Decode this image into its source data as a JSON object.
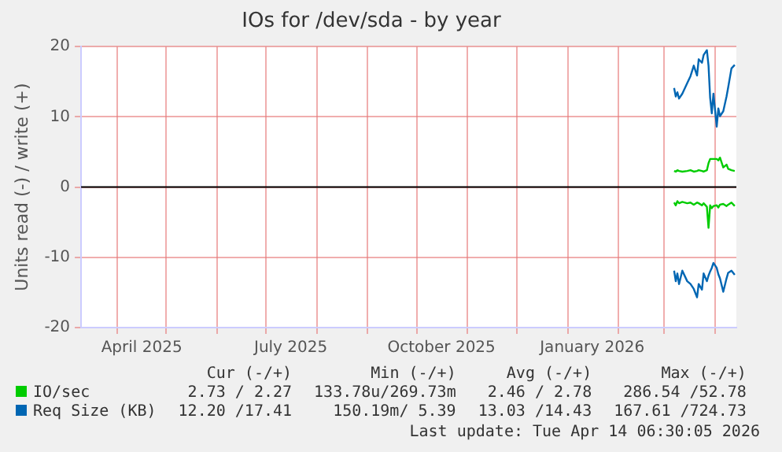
{
  "chart_data": {
    "type": "line",
    "title": "IOs for /dev/sda - by year",
    "ylabel": "Units read (-) / write (+)",
    "xlim": [
      "2025-03-10",
      "2026-04-14"
    ],
    "xticks": [
      {
        "value": "2025-04-01",
        "label": null
      },
      {
        "value": "2025-04-16",
        "label": "April 2025"
      },
      {
        "value": "2025-05-01",
        "label": null
      },
      {
        "value": "2025-06-01",
        "label": null
      },
      {
        "value": "2025-07-01",
        "label": null
      },
      {
        "value": "2025-07-16",
        "label": "July 2025"
      },
      {
        "value": "2025-08-01",
        "label": null
      },
      {
        "value": "2025-09-01",
        "label": null
      },
      {
        "value": "2025-10-01",
        "label": null
      },
      {
        "value": "2025-10-16",
        "label": "October 2025"
      },
      {
        "value": "2025-11-01",
        "label": null
      },
      {
        "value": "2025-12-01",
        "label": null
      },
      {
        "value": "2026-01-01",
        "label": null
      },
      {
        "value": "2026-01-16",
        "label": "January 2026"
      },
      {
        "value": "2026-02-01",
        "label": null
      },
      {
        "value": "2026-03-01",
        "label": null
      },
      {
        "value": "2026-04-01",
        "label": null
      }
    ],
    "ylim": [
      -20,
      20
    ],
    "yticks": [
      -20,
      -10,
      0,
      10,
      20
    ],
    "grid": true,
    "legend": "bottom",
    "marker": "none",
    "line_style": "solid",
    "x": [
      "2026-03-07",
      "2026-03-08",
      "2026-03-09",
      "2026-03-10",
      "2026-03-12",
      "2026-03-15",
      "2026-03-17",
      "2026-03-19",
      "2026-03-21",
      "2026-03-22",
      "2026-03-24",
      "2026-03-25",
      "2026-03-27",
      "2026-03-28",
      "2026-03-29",
      "2026-03-30",
      "2026-03-31",
      "2026-04-02",
      "2026-04-03",
      "2026-04-04",
      "2026-04-06",
      "2026-04-08",
      "2026-04-09",
      "2026-04-11",
      "2026-04-13"
    ],
    "series": [
      {
        "name": "IO/sec",
        "color": "#00cc00",
        "values": [
          2.3,
          2.2,
          2.4,
          2.3,
          2.2,
          2.3,
          2.4,
          2.2,
          2.3,
          2.4,
          2.3,
          2.2,
          2.4,
          3.4,
          4.0,
          4.0,
          4.0,
          4.0,
          3.8,
          4.2,
          2.8,
          3.2,
          2.6,
          2.4,
          2.3
        ]
      },
      {
        "color": "#00cc00",
        "values": [
          -2.2,
          -2.6,
          -2.0,
          -2.3,
          -2.1,
          -2.3,
          -2.2,
          -2.5,
          -2.2,
          -2.3,
          -2.6,
          -2.3,
          -2.8,
          -5.8,
          -2.6,
          -3.0,
          -2.7,
          -2.6,
          -2.9,
          -2.5,
          -2.4,
          -2.7,
          -2.5,
          -2.2,
          -2.7
        ]
      },
      {
        "name": "Req Size (KB)",
        "color": "#0066b3",
        "values": [
          14.1,
          12.9,
          13.5,
          12.6,
          13.3,
          14.8,
          15.8,
          17.3,
          15.9,
          18.2,
          17.7,
          18.8,
          19.5,
          17.3,
          12.7,
          10.5,
          13.3,
          8.6,
          11.2,
          10.1,
          10.8,
          12.9,
          14.2,
          16.9,
          17.4
        ]
      },
      {
        "color": "#0066b3",
        "values": [
          -11.9,
          -13.4,
          -12.3,
          -13.8,
          -11.9,
          -13.4,
          -13.8,
          -14.5,
          -15.7,
          -13.8,
          -14.6,
          -12.3,
          -13.4,
          -12.6,
          -12.0,
          -11.5,
          -10.8,
          -11.5,
          -12.4,
          -13.0,
          -14.9,
          -13.0,
          -12.2,
          -11.9,
          -12.5
        ]
      }
    ],
    "ref_lines": [
      {
        "axis": "y",
        "value": 0,
        "color": "#000000"
      }
    ],
    "annotations": [
      "Cur (-/+)",
      "Min (-/+)",
      "Avg (-/+)",
      "Max (-/+)",
      "2.73 / 2.27",
      "133.78u/269.73m",
      "2.46 / 2.78",
      "286.54 /52.78",
      "12.20 /17.41",
      "150.19m/ 5.39",
      "13.03 /14.43",
      "167.61 /724.73",
      "Last update: Tue Apr 14 06:30:05 2026"
    ]
  }
}
